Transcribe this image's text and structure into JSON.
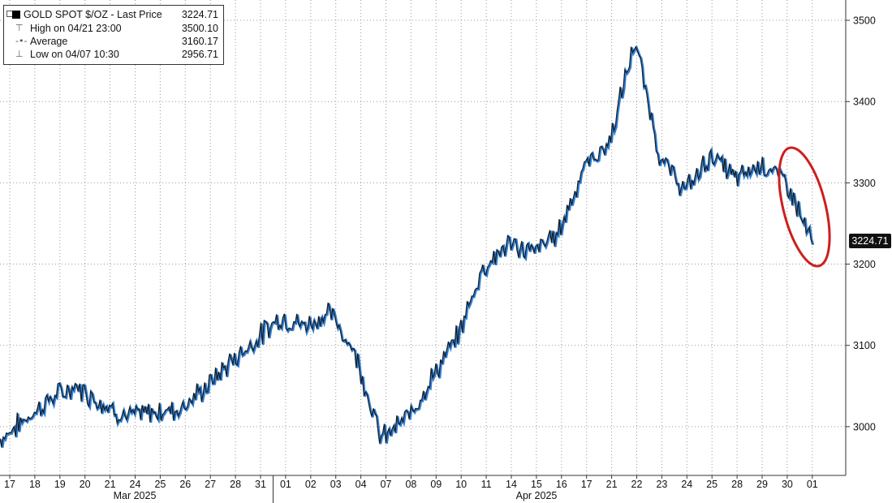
{
  "legend": {
    "title": "GOLD SPOT $/OZ - Last Price",
    "last_value": "3224.71",
    "high_label": "High on 04/21 23:00",
    "high_value": "3500.10",
    "avg_label": "Average",
    "avg_value": "3160.17",
    "low_label": "Low on 04/07 10:30",
    "low_value": "2956.71"
  },
  "last_price_tag": "3224.71",
  "colors": {
    "line": "#1a1a1a",
    "accent": "#2f7fd6",
    "highlight_ellipse": "#cc1f1f",
    "grid": "#9a9a9a"
  },
  "chart_data": {
    "type": "line",
    "title": "GOLD SPOT $/OZ",
    "y_axis": {
      "side": "right",
      "ticks": [
        3000,
        3100,
        3200,
        3300,
        3400,
        3500
      ],
      "ylim": [
        2940,
        3525
      ]
    },
    "x_tick_labels": [
      "17",
      "18",
      "19",
      "20",
      "21",
      "24",
      "25",
      "26",
      "27",
      "28",
      "31",
      "01",
      "02",
      "03",
      "04",
      "07",
      "08",
      "09",
      "10",
      "11",
      "14",
      "15",
      "16",
      "17",
      "21",
      "22",
      "23",
      "24",
      "25",
      "28",
      "29",
      "30",
      "01"
    ],
    "month_labels": [
      "Mar 2025",
      "Apr 2025"
    ],
    "grid": true,
    "annotation": "red ellipse around latest decline",
    "series": [
      {
        "dates": [
          "17",
          "18",
          "19",
          "20",
          "21",
          "24",
          "25",
          "26",
          "27",
          "28",
          "31",
          "01",
          "02",
          "03",
          "04",
          "07",
          "08",
          "09",
          "10",
          "11",
          "14",
          "15",
          "16",
          "17",
          "21",
          "22",
          "23",
          "24",
          "25",
          "28",
          "29",
          "30",
          "01"
        ],
        "values": [
          2985,
          3010,
          3035,
          3050,
          3030,
          3012,
          3018,
          3022,
          3045,
          3078,
          3105,
          3135,
          3125,
          3140,
          3090,
          2985,
          3010,
          3060,
          3110,
          3195,
          3225,
          3215,
          3240,
          3320,
          3350,
          3475,
          3330,
          3290,
          3335,
          3305,
          3325,
          3300,
          3224.71
        ]
      }
    ]
  }
}
